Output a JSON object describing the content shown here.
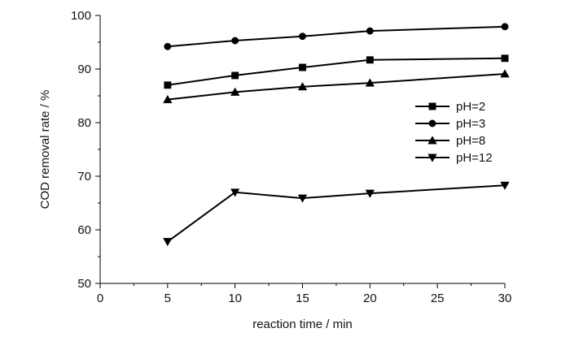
{
  "chart_data": {
    "type": "line",
    "title": "",
    "xlabel": "reaction time / min",
    "ylabel": "COD removal rate / %",
    "x_tick_labels": [
      "0",
      "5",
      "10",
      "15",
      "20",
      "25",
      "30"
    ],
    "y_tick_labels": [
      "50",
      "60",
      "70",
      "80",
      "90",
      "100"
    ],
    "xlim": [
      0,
      30
    ],
    "ylim": [
      50,
      100
    ],
    "grid": false,
    "legend_position": "right",
    "x": [
      5,
      10,
      15,
      20,
      30
    ],
    "series": [
      {
        "name": "pH=2",
        "marker": "square",
        "values": [
          87,
          88.8,
          90.3,
          91.7,
          92
        ]
      },
      {
        "name": "pH=3",
        "marker": "circle",
        "values": [
          94.2,
          95.3,
          96.1,
          97.1,
          97.9
        ]
      },
      {
        "name": "pH=8",
        "marker": "triangle-up",
        "values": [
          84.3,
          85.7,
          86.7,
          87.4,
          89.1
        ]
      },
      {
        "name": "pH=12",
        "marker": "triangle-down",
        "values": [
          57.8,
          67,
          65.9,
          66.8,
          68.3
        ]
      }
    ]
  }
}
